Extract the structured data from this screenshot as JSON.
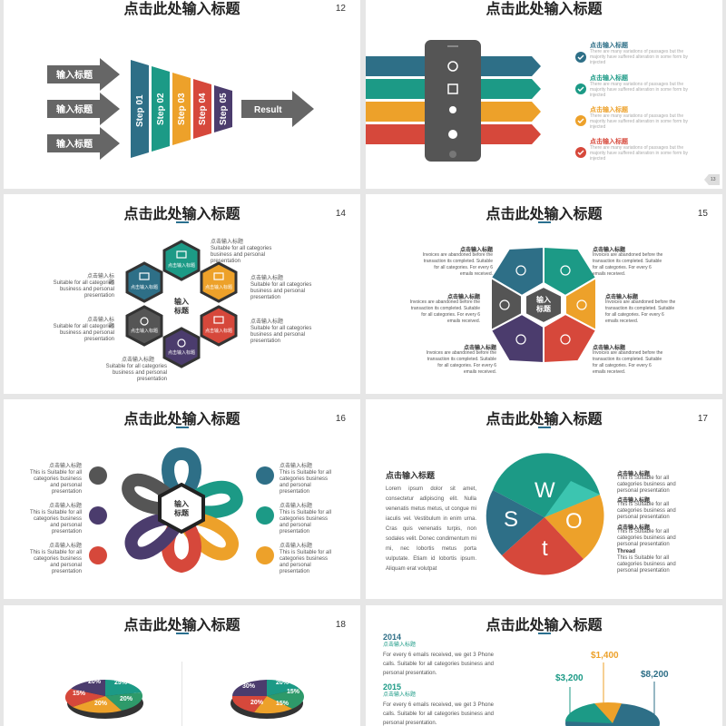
{
  "colors": {
    "teal": "#2e6f87",
    "green": "#1c9a86",
    "orange": "#eda12a",
    "red": "#d6483b",
    "purple": "#4b3c6d",
    "gray": "#555555"
  },
  "slide12": {
    "number": "12",
    "title": "点击此处输入标题",
    "inputs": [
      "输入标题",
      "输入标题",
      "输入标题"
    ],
    "steps": [
      "Step 01",
      "Step 02",
      "Step 03",
      "Step 04",
      "Step 05"
    ],
    "result": "Result"
  },
  "slide13": {
    "title": "点击此处输入标题",
    "page": "13",
    "items": [
      {
        "title": "点击输入标题",
        "body": "There are many variations of passages but the majority have suffered alteration in some form by injected"
      },
      {
        "title": "点击输入标题",
        "body": "There are many variations of passages but the majority have suffered alteration in some form by injected"
      },
      {
        "title": "点击输入标题",
        "body": "There are many variations of passages but the majority have suffered alteration in some form by injected"
      },
      {
        "title": "点击输入标题",
        "body": "There are many variations of passages but the majority have suffered alteration in some form by injected"
      }
    ]
  },
  "slide14": {
    "number": "14",
    "title": "点击此处输入标题",
    "center": "输入标题",
    "hex_label": "点击输入标题",
    "captions": [
      {
        "title": "点击输入标题",
        "body": "Suitable for all categories business and personal presentation"
      },
      {
        "title": "点击输入标题",
        "body": "Suitable for all categories business and personal presentation"
      },
      {
        "title": "点击输入标题",
        "body": "Suitable for all categories business and personal presentation"
      },
      {
        "title": "点击输入标题",
        "body": "Suitable for all categories business and personal presentation"
      },
      {
        "title": "点击输入标题",
        "body": "Suitable for all categories business and personal presentation"
      },
      {
        "title": "点击输入标题",
        "body": "Suitable for all categories business and personal presentation"
      }
    ]
  },
  "slide15": {
    "number": "15",
    "title": "点击此处输入标题",
    "center": "输入标题",
    "captions": [
      {
        "title": "点击输入标题",
        "body": "Invoices are abandoned before the transaction its completed. Suitable for all categories. For every 6 emails received."
      },
      {
        "title": "点击输入标题",
        "body": "Invoices are abandoned before the transaction its completed. Suitable for all categories. For every 6 emails received."
      },
      {
        "title": "点击输入标题",
        "body": "Invoices are abandoned before the transaction its completed. Suitable for all categories. For every 6 emails received."
      },
      {
        "title": "点击输入标题",
        "body": "Invoices are abandoned before the transaction its completed. Suitable for all categories. For every 6 emails received."
      },
      {
        "title": "点击输入标题",
        "body": "Invoices are abandoned before the transaction its completed. Suitable for all categories. For every 6 emails received."
      },
      {
        "title": "点击输入标题",
        "body": "Invoices are abandoned before the transaction its completed. Suitable for all categories. For every 6 emails received."
      }
    ]
  },
  "slide16": {
    "number": "16",
    "title": "点击此处输入标题",
    "center": "输入标题",
    "captions": [
      {
        "title": "点击输入标题",
        "body": "This is Suitable for all categories business and personal presentation"
      },
      {
        "title": "点击输入标题",
        "body": "This is Suitable for all categories business and personal presentation"
      },
      {
        "title": "点击输入标题",
        "body": "This is Suitable for all categories business and personal presentation"
      },
      {
        "title": "点击输入标题",
        "body": "This is Suitable for all categories business and personal presentation"
      },
      {
        "title": "点击输入标题",
        "body": "This is Suitable for all categories business and personal presentation"
      },
      {
        "title": "点击输入标题",
        "body": "This is Suitable for all categories business and personal presentation"
      }
    ]
  },
  "slide17": {
    "number": "17",
    "title": "点击此处输入标题",
    "heading": "点击输入标题",
    "paragraph": "Lorem ipsum dolor sit amet, consectetur adipiscing elit. Nulla venenatis metus metus, ut congue mi iaculis vel. Vestibulum in enim urna. Cras quis venenatis turpis, non sodales velit. Donec condimentum mi mi, nec lobortis metus porta vulputate. Etiam id lobortis ipsum. Aliquam erat volutpat",
    "letters": [
      "W",
      "O",
      "t",
      "S"
    ],
    "captions": [
      {
        "title": "点击输入标题",
        "body": "This is Suitable for all categories business and personal presentation"
      },
      {
        "title": "点击输入标题",
        "body": "This is Suitable for all categories business and personal presentation"
      },
      {
        "title": "点击输入标题",
        "body": "This is Suitable for all categories business and personal presentation"
      },
      {
        "title": "Thread",
        "body": "This is Suitable for all categories business and personal presentation"
      }
    ]
  },
  "slide18": {
    "number": "18",
    "title": "点击此处输入标题",
    "pie1": [
      "20%",
      "25%",
      "20%",
      "20%",
      "15%"
    ],
    "pie2": [
      "20%",
      "30%",
      "15%",
      "15%",
      "20%"
    ]
  },
  "slide19": {
    "title": "点击此处输入标题",
    "years": [
      {
        "year": "2014",
        "sub": "点击输入标题",
        "body": "For every 6 emails received, we get 3 Phone calls. Suitable for all categories business and personal presentation."
      },
      {
        "year": "2015",
        "sub": "点击输入标题",
        "body": "For every 6 emails received, we get 3 Phone calls. Suitable for all categories business and personal presentation."
      }
    ],
    "values": [
      "$3,200",
      "$1,400",
      "$8,200"
    ]
  }
}
